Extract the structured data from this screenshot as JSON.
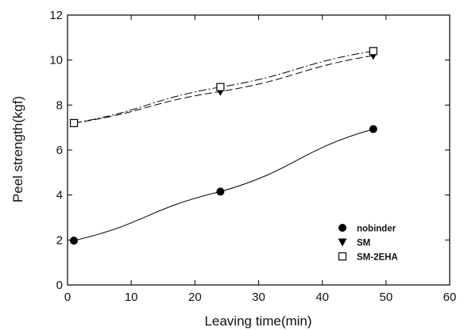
{
  "chart_data": {
    "type": "scatter",
    "title": "",
    "xlabel": "Leaving time(min)",
    "ylabel": "Peel strength(kgf)",
    "xlim": [
      0,
      60
    ],
    "ylim": [
      0,
      12
    ],
    "xticks": [
      0,
      10,
      20,
      30,
      40,
      50,
      60
    ],
    "yticks": [
      0,
      2,
      4,
      6,
      8,
      10,
      12
    ],
    "grid": false,
    "legend_position": "bottom-right",
    "series": [
      {
        "name": "nobinder",
        "marker": "filled-circle",
        "line_style": "solid",
        "color": "#000000",
        "x": [
          1,
          24,
          48
        ],
        "y": [
          1.97,
          4.15,
          6.93
        ]
      },
      {
        "name": "SM",
        "marker": "filled-triangle-down",
        "line_style": "dashed",
        "color": "#000000",
        "x": [
          1,
          24,
          48
        ],
        "y": [
          7.2,
          8.6,
          10.2
        ]
      },
      {
        "name": "SM-2EHA",
        "marker": "open-square",
        "line_style": "dash-dot",
        "color": "#000000",
        "x": [
          1,
          24,
          48
        ],
        "y": [
          7.2,
          8.8,
          10.4
        ]
      }
    ]
  }
}
